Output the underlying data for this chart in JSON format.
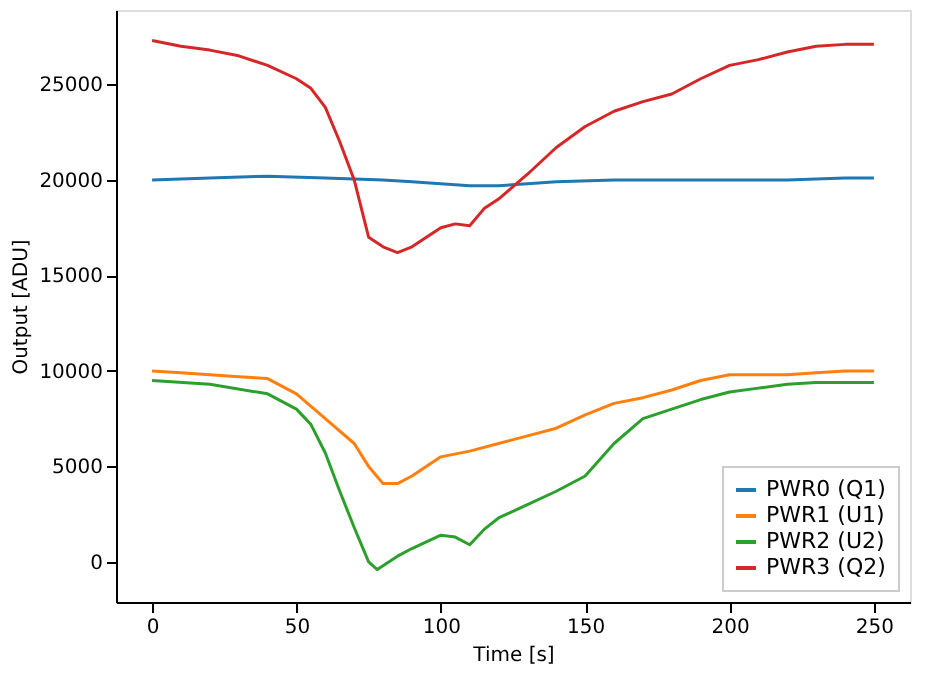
{
  "chart_data": {
    "type": "line",
    "xlabel": "Time [s]",
    "ylabel": "Output [ADU]",
    "xlim": [
      -12.5,
      262.5
    ],
    "xticks": [
      0,
      50,
      100,
      150,
      200,
      250
    ],
    "ylim": [
      -2100,
      28900
    ],
    "yticks": [
      0,
      5000,
      10000,
      15000,
      20000,
      25000
    ],
    "grid": false,
    "legend": "bottom right",
    "marker": "none",
    "line_style": "solid",
    "series": [
      {
        "name": "PWR0 (Q1)",
        "color": "#1f77b4",
        "x": [
          0,
          20,
          40,
          60,
          80,
          90,
          100,
          110,
          120,
          130,
          140,
          160,
          180,
          200,
          220,
          240,
          250
        ],
        "values": [
          20000,
          20100,
          20200,
          20100,
          20000,
          19900,
          19800,
          19700,
          19700,
          19800,
          19900,
          20000,
          20000,
          20000,
          20000,
          20100,
          20100
        ]
      },
      {
        "name": "PWR1 (U1)",
        "color": "#ff7f0e",
        "x": [
          0,
          10,
          20,
          30,
          40,
          50,
          60,
          70,
          75,
          80,
          85,
          90,
          100,
          110,
          120,
          130,
          140,
          150,
          160,
          170,
          180,
          190,
          200,
          210,
          220,
          230,
          240,
          250
        ],
        "values": [
          10000,
          9900,
          9800,
          9700,
          9600,
          8800,
          7500,
          6200,
          5000,
          4100,
          4100,
          4500,
          5500,
          5800,
          6200,
          6600,
          7000,
          7700,
          8300,
          8600,
          9000,
          9500,
          9800,
          9800,
          9800,
          9900,
          10000,
          10000
        ]
      },
      {
        "name": "PWR2 (U2)",
        "color": "#2ca02c",
        "x": [
          0,
          20,
          40,
          50,
          55,
          60,
          65,
          70,
          75,
          78,
          85,
          90,
          100,
          105,
          110,
          115,
          120,
          130,
          140,
          150,
          160,
          170,
          180,
          190,
          200,
          210,
          220,
          230,
          250
        ],
        "values": [
          9500,
          9300,
          8800,
          8000,
          7200,
          5700,
          3700,
          1800,
          0,
          -400,
          300,
          700,
          1400,
          1300,
          900,
          1700,
          2300,
          3000,
          3700,
          4500,
          6200,
          7500,
          8000,
          8500,
          8900,
          9100,
          9300,
          9400,
          9400
        ]
      },
      {
        "name": "PWR3 (Q2)",
        "color": "#d62728",
        "x": [
          0,
          10,
          20,
          30,
          40,
          50,
          55,
          60,
          65,
          70,
          75,
          80,
          85,
          90,
          95,
          100,
          105,
          110,
          115,
          120,
          130,
          140,
          150,
          160,
          170,
          180,
          190,
          200,
          210,
          220,
          230,
          240,
          250
        ],
        "values": [
          27300,
          27000,
          26800,
          26500,
          26000,
          25300,
          24800,
          23800,
          22000,
          20000,
          17000,
          16500,
          16200,
          16500,
          17000,
          17500,
          17700,
          17600,
          18500,
          19000,
          20300,
          21700,
          22800,
          23600,
          24100,
          24500,
          25300,
          26000,
          26300,
          26700,
          27000,
          27100,
          27100
        ]
      }
    ]
  }
}
